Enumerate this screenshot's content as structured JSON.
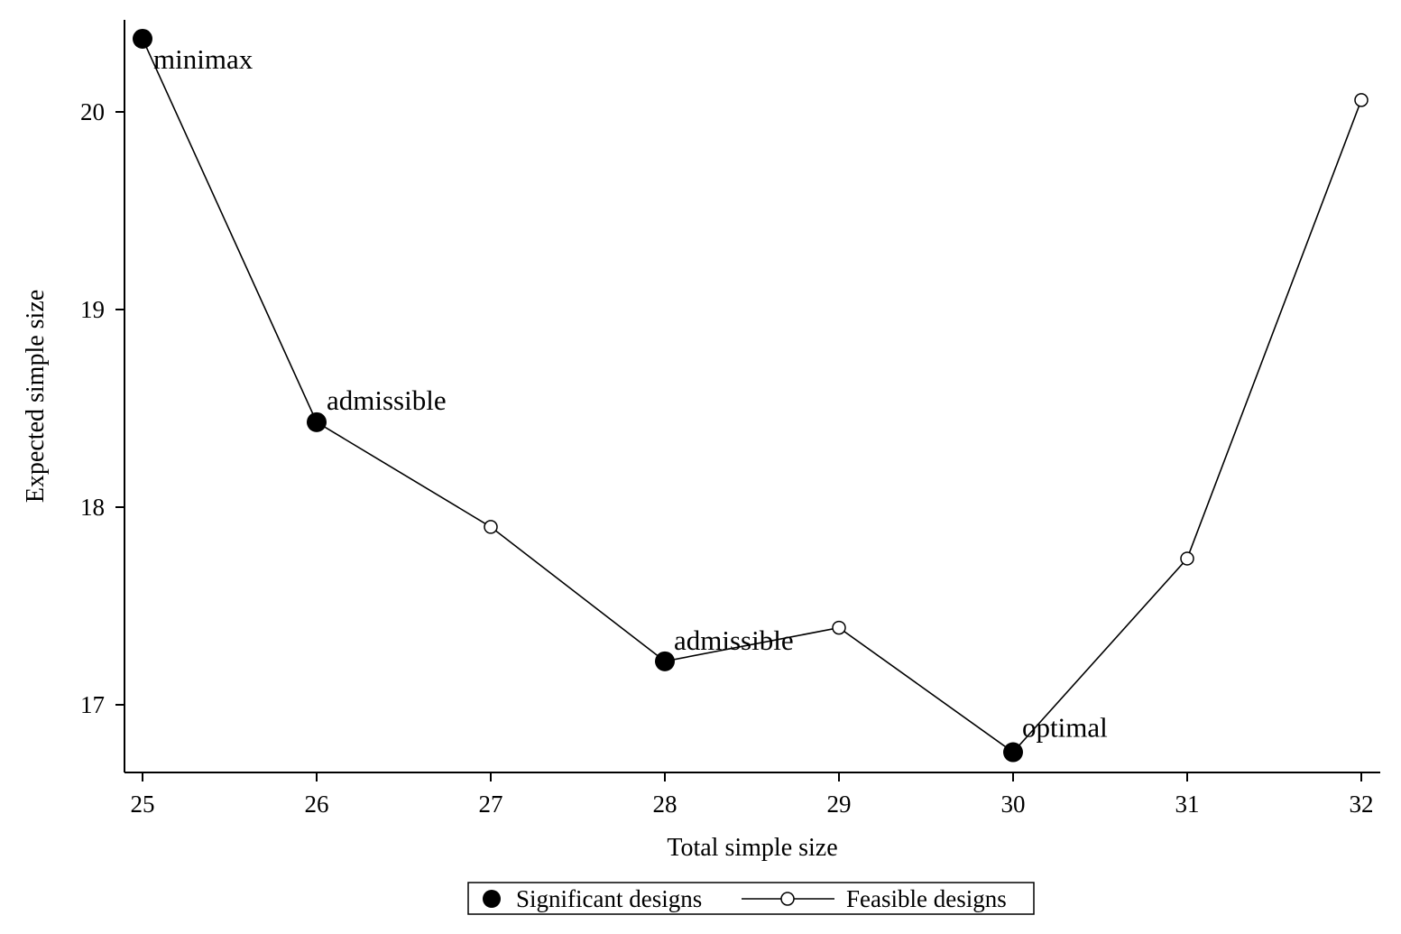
{
  "chart_data": {
    "type": "line",
    "xlabel": "Total simple size",
    "ylabel": "Expected simple size",
    "x": [
      25,
      26,
      27,
      28,
      29,
      30,
      31,
      32
    ],
    "xlim": [
      24.9,
      32.1
    ],
    "ylim": [
      16.66,
      20.46
    ],
    "x_ticks": [
      25,
      26,
      27,
      28,
      29,
      30,
      31,
      32
    ],
    "y_ticks": [
      17,
      18,
      19,
      20
    ],
    "grid": false,
    "legend_position": "bottom",
    "series": [
      {
        "name": "Feasible designs",
        "style": "line-with-open-circles",
        "x": [
          25,
          26,
          27,
          28,
          29,
          30,
          31,
          32
        ],
        "values": [
          20.37,
          18.43,
          17.9,
          17.22,
          17.39,
          16.76,
          17.74,
          20.06
        ]
      },
      {
        "name": "Significant designs",
        "style": "filled-circles",
        "x": [
          25,
          26,
          28,
          30
        ],
        "values": [
          20.37,
          18.43,
          17.22,
          16.76
        ]
      }
    ],
    "annotations": [
      {
        "x": 25,
        "y": 20.37,
        "text": "minimax"
      },
      {
        "x": 26,
        "y": 18.43,
        "text": "admissible"
      },
      {
        "x": 28,
        "y": 17.22,
        "text": "admissible"
      },
      {
        "x": 30,
        "y": 16.76,
        "text": "optimal"
      }
    ],
    "colors": {
      "line": "#000000",
      "marker": "#000000",
      "background": "#ffffff"
    }
  }
}
